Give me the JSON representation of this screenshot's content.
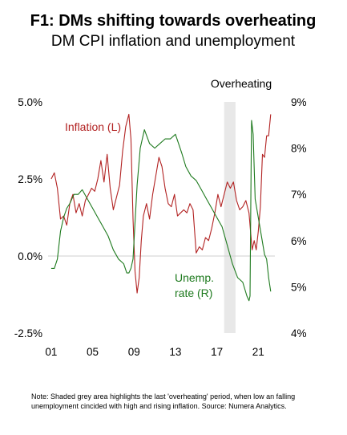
{
  "chart_data": {
    "type": "line",
    "title": "F1: DMs shifting towards overheating",
    "subtitle": "DM CPI inflation and unemployment",
    "shaded_region": {
      "label": "Overheating",
      "x_start": 2017.7,
      "x_end": 2018.8,
      "color": "#e8e8e8"
    },
    "x_axis": {
      "ticks": [
        2001,
        2005,
        2009,
        2013,
        2017,
        2021
      ],
      "tick_labels": [
        "01",
        "05",
        "09",
        "13",
        "17",
        "21"
      ],
      "range": [
        2000.7,
        2022.6
      ]
    },
    "y_left": {
      "range": [
        -2.5,
        5.0
      ],
      "ticks": [
        -2.5,
        0.0,
        2.5,
        5.0
      ],
      "tick_labels": [
        "-2.5%",
        "0.0%",
        "2.5%",
        "5.0%"
      ]
    },
    "y_right": {
      "range": [
        4,
        9
      ],
      "ticks": [
        4,
        5,
        6,
        7,
        8,
        9
      ],
      "tick_labels": [
        "4%",
        "5%",
        "6%",
        "7%",
        "8%",
        "9%"
      ]
    },
    "series": [
      {
        "name": "Inflation (L)",
        "axis": "left",
        "color": "#b22222",
        "x": [
          2001.0,
          2001.3,
          2001.6,
          2001.9,
          2002.2,
          2002.5,
          2002.8,
          2003.1,
          2003.4,
          2003.7,
          2004.0,
          2004.3,
          2004.6,
          2004.9,
          2005.2,
          2005.5,
          2005.8,
          2006.1,
          2006.4,
          2006.7,
          2007.0,
          2007.3,
          2007.6,
          2007.9,
          2008.2,
          2008.5,
          2008.7,
          2008.9,
          2009.1,
          2009.3,
          2009.5,
          2009.7,
          2009.9,
          2010.2,
          2010.5,
          2010.8,
          2011.1,
          2011.4,
          2011.7,
          2012.0,
          2012.3,
          2012.6,
          2012.9,
          2013.2,
          2013.5,
          2013.8,
          2014.1,
          2014.4,
          2014.7,
          2015.0,
          2015.3,
          2015.6,
          2015.9,
          2016.2,
          2016.5,
          2016.8,
          2017.1,
          2017.4,
          2017.7,
          2018.0,
          2018.3,
          2018.6,
          2018.9,
          2019.2,
          2019.5,
          2019.8,
          2020.1,
          2020.4,
          2020.6,
          2020.8,
          2021.0,
          2021.2,
          2021.4,
          2021.6,
          2021.8,
          2022.0,
          2022.2
        ],
        "values": [
          2.5,
          2.7,
          2.2,
          1.2,
          1.3,
          1.0,
          1.7,
          2.0,
          1.4,
          1.7,
          1.3,
          1.8,
          2.0,
          2.2,
          2.1,
          2.5,
          3.1,
          2.4,
          3.3,
          2.2,
          1.5,
          1.9,
          2.3,
          3.4,
          4.2,
          4.6,
          3.8,
          1.2,
          -0.5,
          -1.2,
          -0.7,
          0.5,
          1.3,
          1.7,
          1.2,
          2.0,
          2.6,
          3.2,
          2.9,
          2.2,
          1.7,
          1.6,
          2.0,
          1.3,
          1.4,
          1.5,
          1.4,
          1.7,
          1.5,
          0.1,
          0.3,
          0.2,
          0.6,
          0.5,
          0.9,
          1.4,
          2.0,
          1.6,
          2.0,
          2.4,
          2.2,
          2.4,
          1.8,
          1.5,
          1.6,
          1.8,
          1.4,
          0.2,
          0.5,
          0.2,
          0.8,
          1.6,
          3.3,
          3.2,
          3.9,
          3.9,
          4.6
        ]
      },
      {
        "name": "Unemp. rate (R)",
        "axis": "right",
        "color": "#1e7a1e",
        "x": [
          2001.0,
          2001.3,
          2001.6,
          2001.9,
          2002.2,
          2002.5,
          2002.8,
          2003.2,
          2003.6,
          2004.0,
          2004.5,
          2005.0,
          2005.5,
          2006.0,
          2006.5,
          2007.0,
          2007.5,
          2008.0,
          2008.3,
          2008.5,
          2008.7,
          2008.9,
          2009.1,
          2009.3,
          2009.6,
          2010.0,
          2010.5,
          2011.0,
          2011.5,
          2012.0,
          2012.5,
          2013.0,
          2013.3,
          2013.6,
          2014.0,
          2014.5,
          2015.0,
          2015.5,
          2016.0,
          2016.5,
          2017.0,
          2017.5,
          2018.0,
          2018.5,
          2019.0,
          2019.5,
          2019.9,
          2020.1,
          2020.2,
          2020.3,
          2020.35,
          2020.5,
          2020.7,
          2021.0,
          2021.3,
          2021.6,
          2021.8,
          2022.0,
          2022.2
        ],
        "values": [
          5.4,
          5.4,
          5.6,
          6.2,
          6.5,
          6.7,
          6.8,
          7.0,
          7.0,
          7.1,
          6.9,
          6.7,
          6.5,
          6.3,
          6.1,
          5.8,
          5.6,
          5.5,
          5.3,
          5.3,
          5.4,
          5.6,
          6.4,
          7.2,
          8.0,
          8.4,
          8.1,
          8.0,
          8.1,
          8.2,
          8.2,
          8.3,
          8.1,
          7.9,
          7.6,
          7.4,
          7.3,
          7.1,
          6.9,
          6.7,
          6.5,
          6.3,
          5.9,
          5.5,
          5.2,
          5.1,
          4.8,
          4.7,
          4.8,
          7.5,
          8.6,
          8.3,
          6.9,
          6.5,
          6.1,
          5.7,
          5.6,
          5.2,
          4.9
        ]
      }
    ],
    "annotations": [
      {
        "text": "Inflation (L)",
        "color": "#b22222"
      },
      {
        "text": "Unemp.",
        "color": "#1e7a1e"
      },
      {
        "text": "rate (R)",
        "color": "#1e7a1e"
      }
    ],
    "note_lines": [
      "Note: Shaded grey area highlights the last 'overheating' period, when low an falling",
      "unemployment cincided with high and rising inflation. Source: Numera Analytics."
    ]
  }
}
